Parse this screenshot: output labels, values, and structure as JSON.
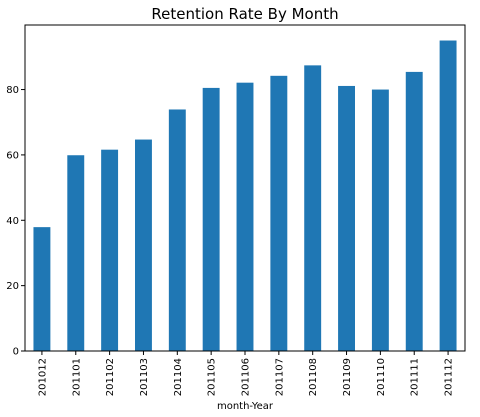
{
  "chart_data": {
    "type": "bar",
    "title": "Retention Rate By Month",
    "xlabel": "month-Year",
    "ylabel": "",
    "categories": [
      "201012",
      "201101",
      "201102",
      "201103",
      "201104",
      "201105",
      "201106",
      "201107",
      "201108",
      "201109",
      "201110",
      "201111",
      "201112"
    ],
    "values": [
      37.9,
      59.9,
      61.6,
      64.7,
      73.9,
      80.5,
      82.1,
      84.2,
      87.4,
      81.1,
      80.0,
      85.4,
      95.0
    ],
    "ylim": [
      0,
      99.75
    ],
    "yticks": [
      0,
      20,
      40,
      60,
      80
    ],
    "grid": false,
    "legend": "none",
    "bar_color": "#1f77b4"
  }
}
